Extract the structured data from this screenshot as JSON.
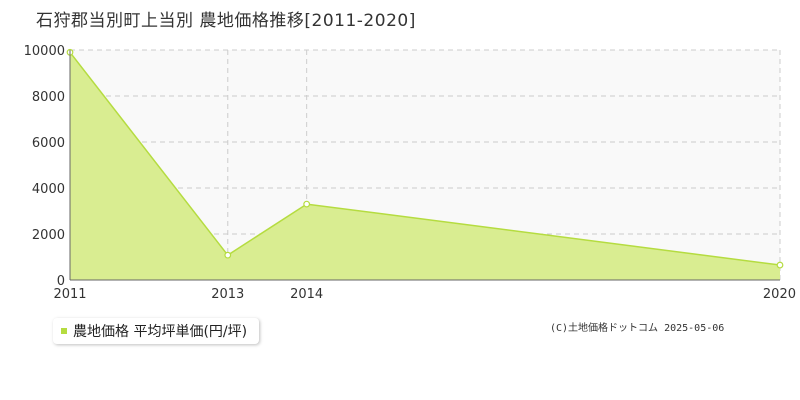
{
  "header": {
    "title": "石狩郡当別町上当別 農地価格推移[2011-2020]"
  },
  "legend": {
    "label": "農地価格 平均坪単価(円/坪)"
  },
  "copyright": "(C)土地価格ドットコム 2025-05-06",
  "chart_data": {
    "type": "area",
    "title": "石狩郡当別町上当別 農地価格推移[2011-2020]",
    "x": [
      2011,
      2013,
      2014,
      2020
    ],
    "x_tick_labels": [
      "2011",
      "2013",
      "2014",
      "2020"
    ],
    "y_tick_labels": [
      "0",
      "2000",
      "4000",
      "6000",
      "8000",
      "10000"
    ],
    "y_ticks": [
      0,
      2000,
      4000,
      6000,
      8000,
      10000
    ],
    "ylim": [
      0,
      10000
    ],
    "grid": true,
    "legend_position": "bottom-left",
    "series": [
      {
        "name": "農地価格 平均坪単価(円/坪)",
        "values": [
          9900,
          1080,
          3300,
          650
        ]
      }
    ],
    "colors": {
      "fill": "#d9ed91",
      "line": "#b5dc40",
      "grid": "#cccccc",
      "axis": "#666666",
      "plot_bg": "#f9f9f9"
    }
  }
}
